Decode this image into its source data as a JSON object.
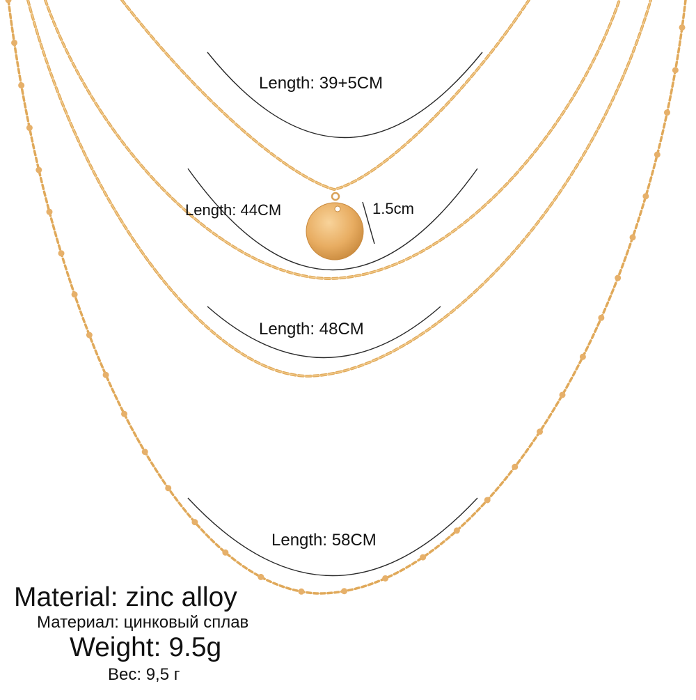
{
  "product": {
    "chain_lengths": [
      {
        "label": "Length: 39+5CM"
      },
      {
        "label": "Length: 44CM"
      },
      {
        "label": "Length: 48CM"
      },
      {
        "label": "Length: 58CM"
      }
    ],
    "pendant_size": "1.5cm",
    "material_en": "Material: zinc alloy",
    "material_ru": "Материал: цинковый сплав",
    "weight_en": "Weight: 9.5g",
    "weight_ru": "Вес: 9,5 г"
  },
  "colors": {
    "gold_chain": "#e0a95a",
    "gold_link": "#f2c27a",
    "pendant": "#e8ad62",
    "pendant_highlight": "#f6c98a",
    "guide_line": "#2a2a2a"
  },
  "icons": [
    "pendant-disc"
  ]
}
